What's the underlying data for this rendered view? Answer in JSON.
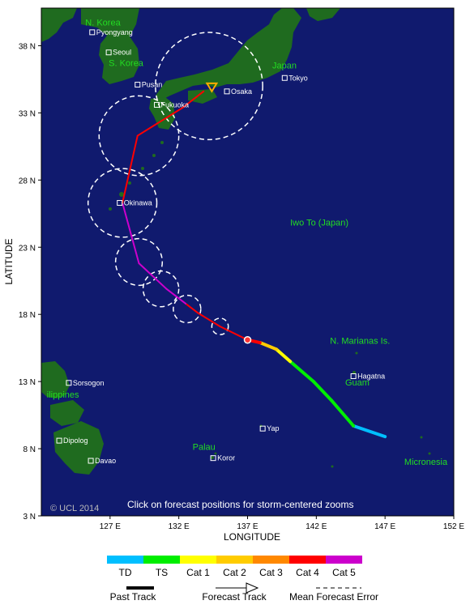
{
  "axes": {
    "y_title": "LATITUDE",
    "x_title": "LONGITUDE",
    "lat_ticks": [
      {
        "value": 38,
        "label": "38 N"
      },
      {
        "value": 33,
        "label": "33 N"
      },
      {
        "value": 28,
        "label": "28 N"
      },
      {
        "value": 23,
        "label": "23 N"
      },
      {
        "value": 18,
        "label": "18 N"
      },
      {
        "value": 13,
        "label": "13 N"
      },
      {
        "value": 8,
        "label": "8 N"
      },
      {
        "value": 3,
        "label": "3 N"
      }
    ],
    "lon_ticks": [
      {
        "value": 127,
        "label": "127 E"
      },
      {
        "value": 132,
        "label": "132 E"
      },
      {
        "value": 137,
        "label": "137 E"
      },
      {
        "value": 142,
        "label": "142 E"
      },
      {
        "value": 147,
        "label": "147 E"
      },
      {
        "value": 152,
        "label": "152 E"
      }
    ],
    "lon_range": [
      122,
      152
    ],
    "lat_range": [
      3,
      40.8
    ]
  },
  "colors": {
    "ocean": "#101a6e",
    "land": "#1f6b1f",
    "region_label": "#22dd22",
    "city_label": "#ffffff",
    "error_circle": "#ffffff",
    "TD": "#00bfff",
    "TS": "#00ee00",
    "Cat 1": "#ffff00",
    "Cat 2": "#ffcc00",
    "Cat 3": "#ff8800",
    "Cat 4": "#ff0000",
    "Cat 5": "#cc00cc"
  },
  "track": {
    "past": [
      {
        "lon": 147.0,
        "lat": 8.9,
        "cat": "TD"
      },
      {
        "lon": 144.7,
        "lat": 9.7,
        "cat": "TD"
      },
      {
        "lon": 143.1,
        "lat": 11.6,
        "cat": "TS"
      },
      {
        "lon": 141.8,
        "lat": 13.0,
        "cat": "TS"
      },
      {
        "lon": 140.1,
        "lat": 14.5,
        "cat": "TS"
      },
      {
        "lon": 139.1,
        "lat": 15.4,
        "cat": "Cat 1"
      },
      {
        "lon": 137.9,
        "lat": 15.9,
        "cat": "Cat 2"
      },
      {
        "lon": 137.0,
        "lat": 16.1,
        "cat": "Cat 4"
      }
    ],
    "forecast": [
      {
        "lon": 137.0,
        "lat": 16.1,
        "cat": "Cat 4"
      },
      {
        "lon": 135.0,
        "lat": 17.1,
        "cat": "Cat 4"
      },
      {
        "lon": 133.4,
        "lat": 18.1,
        "cat": "Cat 4"
      },
      {
        "lon": 132.5,
        "lat": 18.8,
        "cat": "Cat 4"
      },
      {
        "lon": 131.1,
        "lat": 19.9,
        "cat": "Cat 5"
      },
      {
        "lon": 129.1,
        "lat": 21.8,
        "cat": "Cat 5"
      },
      {
        "lon": 127.9,
        "lat": 26.3,
        "cat": "Cat 5"
      },
      {
        "lon": 129.0,
        "lat": 31.3,
        "cat": "Cat 4"
      },
      {
        "lon": 132.3,
        "lat": 33.4,
        "cat": "Cat 4"
      },
      {
        "lon": 133.8,
        "lat": 34.6,
        "cat": "Cat 4"
      }
    ],
    "current_position": {
      "lon": 137.0,
      "lat": 16.1
    },
    "end_marker": {
      "lon": 134.4,
      "lat": 34.9
    }
  },
  "error_circles": [
    {
      "lon": 135.0,
      "lat": 17.1,
      "radius_deg": 0.6
    },
    {
      "lon": 132.6,
      "lat": 18.4,
      "radius_deg": 1.0
    },
    {
      "lon": 130.7,
      "lat": 19.9,
      "radius_deg": 1.3
    },
    {
      "lon": 129.1,
      "lat": 21.9,
      "radius_deg": 1.7
    },
    {
      "lon": 127.9,
      "lat": 26.3,
      "radius_deg": 2.5
    },
    {
      "lon": 129.1,
      "lat": 31.3,
      "radius_deg": 2.9
    },
    {
      "lon": 134.2,
      "lat": 35.0,
      "radius_deg": 3.9
    }
  ],
  "cities": [
    {
      "name": "Pyongyang",
      "lon": 125.7,
      "lat": 39.0
    },
    {
      "name": "Seoul",
      "lon": 126.9,
      "lat": 37.5
    },
    {
      "name": "Pusan",
      "lon": 129.0,
      "lat": 35.1
    },
    {
      "name": "Fukuoka",
      "lon": 130.4,
      "lat": 33.6
    },
    {
      "name": "Osaka",
      "lon": 135.5,
      "lat": 34.6
    },
    {
      "name": "Tokyo",
      "lon": 139.7,
      "lat": 35.6
    },
    {
      "name": "Okinawa",
      "lon": 127.7,
      "lat": 26.3
    },
    {
      "name": "Hagatna",
      "lon": 144.7,
      "lat": 13.4
    },
    {
      "name": "Yap",
      "lon": 138.1,
      "lat": 9.5
    },
    {
      "name": "Koror",
      "lon": 134.5,
      "lat": 7.3
    },
    {
      "name": "Sorsogon",
      "lon": 124.0,
      "lat": 12.9
    },
    {
      "name": "Dipolog",
      "lon": 123.3,
      "lat": 8.6
    },
    {
      "name": "Davao",
      "lon": 125.6,
      "lat": 7.1
    }
  ],
  "region_labels": [
    {
      "text": "N. Korea",
      "lon": 125.2,
      "lat": 39.5
    },
    {
      "text": "S. Korea",
      "lon": 126.9,
      "lat": 36.5
    },
    {
      "text": "Japan",
      "lon": 138.8,
      "lat": 36.3
    },
    {
      "text": "Iwo To (Japan)",
      "lon": 140.1,
      "lat": 24.6
    },
    {
      "text": "N. Marianas Is.",
      "lon": 143.0,
      "lat": 15.8
    },
    {
      "text": "Guam",
      "lon": 144.1,
      "lat": 12.7
    },
    {
      "text": "Palau",
      "lon": 133.0,
      "lat": 7.9
    },
    {
      "text": "Micronesia",
      "lon": 148.4,
      "lat": 6.8
    },
    {
      "text": "ilippines",
      "lon": 122.4,
      "lat": 11.8
    }
  ],
  "footer": {
    "copyright": "© UCL 2014",
    "notice": "Click on forecast positions for storm-centered zooms"
  },
  "legend": {
    "scale": [
      "TD",
      "TS",
      "Cat 1",
      "Cat 2",
      "Cat 3",
      "Cat 4",
      "Cat 5"
    ],
    "past_track": "Past Track",
    "forecast_track": "Forecast Track",
    "mean_error": "Mean Forecast Error"
  }
}
